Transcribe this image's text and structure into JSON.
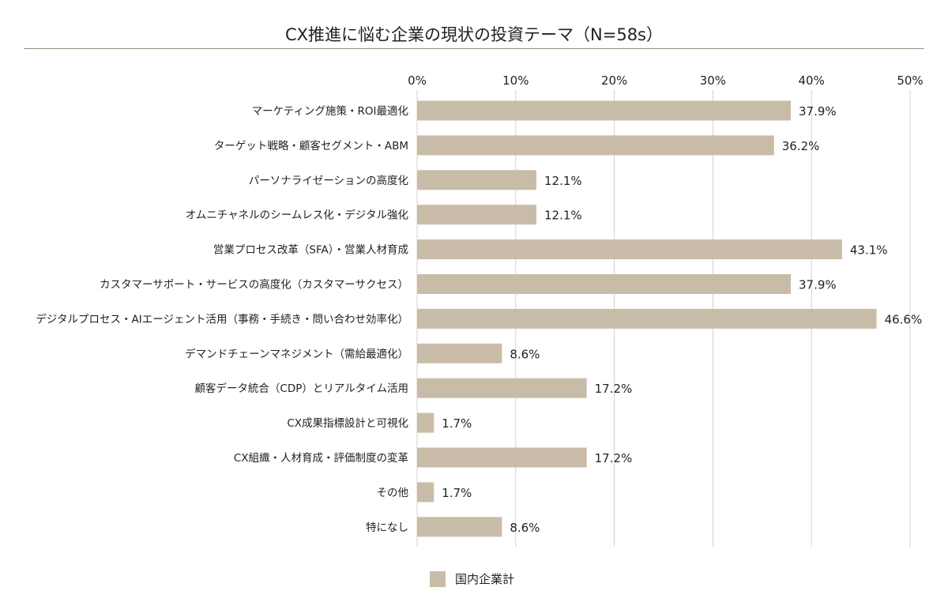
{
  "chart_data": {
    "type": "bar",
    "orientation": "horizontal",
    "title": "CX推進に悩む企業の現状の投資テーマ（N=58s）",
    "xlim": [
      0,
      50
    ],
    "ticks": [
      0,
      10,
      20,
      30,
      40,
      50
    ],
    "tick_labels": [
      "0%",
      "10%",
      "20%",
      "30%",
      "40%",
      "50%"
    ],
    "grid": true,
    "legend_position": "bottom-center",
    "bar_color": "#c8bca8",
    "categories": [
      "マーケティング施策・ROI最適化",
      "ターゲット戦略・顧客セグメント・ABM",
      "パーソナライゼーションの高度化",
      "オムニチャネルのシームレス化・デジタル強化",
      "営業プロセス改革（SFA）・営業人材育成",
      "カスタマーサポート・サービスの高度化（カスタマーサクセス）",
      "デジタルプロセス・AIエージェント活用（事務・手続き・問い合わせ効率化）",
      "デマンドチェーンマネジメント（需給最適化）",
      "顧客データ統合（CDP）とリアルタイム活用",
      "CX成果指標設計と可視化",
      "CX組織・人材育成・評価制度の変革",
      "その他",
      "特になし"
    ],
    "series": [
      {
        "name": "国内企業計",
        "values": [
          37.9,
          36.2,
          12.1,
          12.1,
          43.1,
          37.9,
          46.6,
          8.6,
          17.2,
          1.7,
          17.2,
          1.7,
          8.6
        ],
        "labels": [
          "37.9%",
          "36.2%",
          "12.1%",
          "12.1%",
          "43.1%",
          "37.9%",
          "46.6%",
          "8.6%",
          "17.2%",
          "1.7%",
          "17.2%",
          "1.7%",
          "8.6%"
        ]
      }
    ]
  }
}
